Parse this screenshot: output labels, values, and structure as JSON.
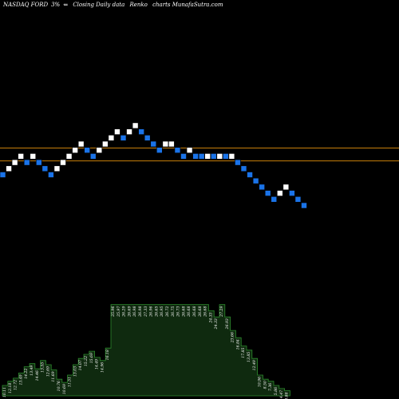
{
  "header": {
    "symbol": "NASDAQ FORD",
    "change": "3%",
    "arrow": "⇐",
    "description": "Closing Daily data",
    "chart_kind": "Renko",
    "watermark": "charts MunafaSutra.com"
  },
  "colors": {
    "background": "#000000",
    "up_brick": "#ffffff",
    "down_brick": "#1a73e8",
    "reference_line": "#c87f0a",
    "volume_fill": "#0f2a0f",
    "volume_line": "#2e8b2e",
    "label_text": "#ffffff"
  },
  "chart_data": {
    "type": "renko",
    "bricks": [
      {
        "col": 0,
        "level": 0,
        "dir": "down"
      },
      {
        "col": 1,
        "level": 1,
        "dir": "up"
      },
      {
        "col": 2,
        "level": 2,
        "dir": "up"
      },
      {
        "col": 3,
        "level": 3,
        "dir": "up"
      },
      {
        "col": 4,
        "level": 2,
        "dir": "down"
      },
      {
        "col": 5,
        "level": 3,
        "dir": "up"
      },
      {
        "col": 6,
        "level": 2,
        "dir": "down"
      },
      {
        "col": 7,
        "level": 1,
        "dir": "down"
      },
      {
        "col": 8,
        "level": 0,
        "dir": "down"
      },
      {
        "col": 9,
        "level": 1,
        "dir": "up"
      },
      {
        "col": 10,
        "level": 2,
        "dir": "up"
      },
      {
        "col": 11,
        "level": 3,
        "dir": "up"
      },
      {
        "col": 12,
        "level": 4,
        "dir": "up"
      },
      {
        "col": 13,
        "level": 5,
        "dir": "up"
      },
      {
        "col": 14,
        "level": 4,
        "dir": "down"
      },
      {
        "col": 15,
        "level": 3,
        "dir": "down"
      },
      {
        "col": 16,
        "level": 4,
        "dir": "up"
      },
      {
        "col": 17,
        "level": 5,
        "dir": "up"
      },
      {
        "col": 18,
        "level": 6,
        "dir": "up"
      },
      {
        "col": 19,
        "level": 7,
        "dir": "up"
      },
      {
        "col": 20,
        "level": 6,
        "dir": "down"
      },
      {
        "col": 21,
        "level": 7,
        "dir": "up"
      },
      {
        "col": 22,
        "level": 8,
        "dir": "up"
      },
      {
        "col": 23,
        "level": 7,
        "dir": "down"
      },
      {
        "col": 24,
        "level": 6,
        "dir": "down"
      },
      {
        "col": 25,
        "level": 5,
        "dir": "down"
      },
      {
        "col": 26,
        "level": 4,
        "dir": "down"
      },
      {
        "col": 27,
        "level": 5,
        "dir": "up"
      },
      {
        "col": 28,
        "level": 5,
        "dir": "up"
      },
      {
        "col": 29,
        "level": 4,
        "dir": "down"
      },
      {
        "col": 30,
        "level": 3,
        "dir": "down"
      },
      {
        "col": 31,
        "level": 4,
        "dir": "up"
      },
      {
        "col": 32,
        "level": 3,
        "dir": "down"
      },
      {
        "col": 33,
        "level": 3,
        "dir": "down"
      },
      {
        "col": 34,
        "level": 3,
        "dir": "up"
      },
      {
        "col": 35,
        "level": 3,
        "dir": "down"
      },
      {
        "col": 36,
        "level": 3,
        "dir": "up"
      },
      {
        "col": 37,
        "level": 3,
        "dir": "down"
      },
      {
        "col": 38,
        "level": 3,
        "dir": "up"
      },
      {
        "col": 39,
        "level": 2,
        "dir": "down"
      },
      {
        "col": 40,
        "level": 1,
        "dir": "down"
      },
      {
        "col": 41,
        "level": 0,
        "dir": "down"
      },
      {
        "col": 42,
        "level": -1,
        "dir": "down"
      },
      {
        "col": 43,
        "level": -2,
        "dir": "down"
      },
      {
        "col": 44,
        "level": -3,
        "dir": "down"
      },
      {
        "col": 45,
        "level": -4,
        "dir": "down"
      },
      {
        "col": 46,
        "level": -3,
        "dir": "up"
      },
      {
        "col": 47,
        "level": -2,
        "dir": "up"
      },
      {
        "col": 48,
        "level": -3,
        "dir": "down"
      },
      {
        "col": 49,
        "level": -4,
        "dir": "down"
      },
      {
        "col": 50,
        "level": -5,
        "dir": "down"
      }
    ],
    "reference_lines": [
      {
        "level": 3.9
      },
      {
        "level": 1.8
      }
    ],
    "volume_labels": [
      "10.11",
      "12.18",
      "12.72",
      "13.49",
      "14.22",
      "13.49",
      "14.46",
      "13.55",
      "12.69",
      "11.69",
      "10.76",
      "10.69",
      "11.51",
      "13.03",
      "14.07",
      "15.22",
      "15.69",
      "14.49",
      "14.96",
      "16.18",
      "25.96",
      "25.97",
      "26.29",
      "26.69",
      "26.98",
      "26.98",
      "27.33",
      "26.96",
      "26.65",
      "26.95",
      "26.72",
      "26.75",
      "26.73",
      "26.68",
      "26.68",
      "26.68",
      "26.68",
      "26.68",
      "24.33",
      "24.33",
      "27.29",
      "26.93",
      "23.66",
      "16.84",
      "17.85",
      "13.85",
      "12.49",
      "10.96",
      "8.50",
      "7.36",
      "5.86",
      "4.47",
      "3.88"
    ],
    "volume_levels": [
      0.1,
      0.14,
      0.17,
      0.22,
      0.28,
      0.31,
      0.26,
      0.34,
      0.3,
      0.25,
      0.16,
      0.13,
      0.2,
      0.3,
      0.36,
      0.4,
      0.43,
      0.37,
      0.34,
      0.46,
      0.88,
      0.88,
      0.88,
      0.88,
      0.88,
      0.88,
      0.88,
      0.88,
      0.88,
      0.88,
      0.88,
      0.88,
      0.88,
      0.88,
      0.88,
      0.88,
      0.88,
      0.88,
      0.82,
      0.76,
      0.88,
      0.76,
      0.63,
      0.56,
      0.48,
      0.44,
      0.36,
      0.2,
      0.16,
      0.14,
      0.1,
      0.07,
      0.05
    ]
  }
}
